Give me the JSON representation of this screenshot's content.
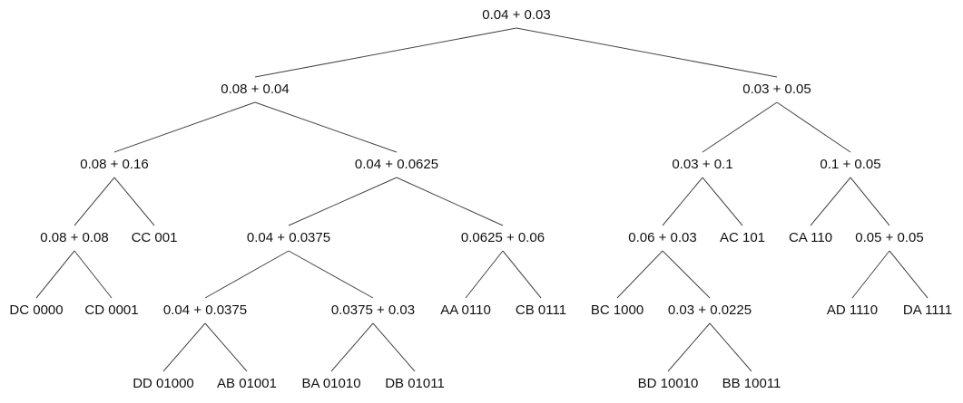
{
  "tree": {
    "label": "0.04 + 0.03",
    "children": [
      {
        "label": "0.08 + 0.04",
        "children": [
          {
            "label": "0.08 + 0.16",
            "children": [
              {
                "label": "0.08 + 0.08",
                "children": [
                  {
                    "label": "DC 0000"
                  },
                  {
                    "label": "CD 0001"
                  }
                ]
              },
              {
                "label": "CC 001"
              }
            ]
          },
          {
            "label": "0.04 + 0.0625",
            "children": [
              {
                "label": "0.04 + 0.0375",
                "children": [
                  {
                    "label": "0.04 + 0.0375",
                    "children": [
                      {
                        "label": "DD 01000"
                      },
                      {
                        "label": "AB 01001"
                      }
                    ]
                  },
                  {
                    "label": "0.0375 + 0.03",
                    "children": [
                      {
                        "label": "BA 01010"
                      },
                      {
                        "label": "DB 01011"
                      }
                    ]
                  }
                ]
              },
              {
                "label": "0.0625 + 0.06",
                "children": [
                  {
                    "label": "AA 0110"
                  },
                  {
                    "label": "CB 0111"
                  }
                ]
              }
            ]
          }
        ]
      },
      {
        "label": "0.03 + 0.05",
        "children": [
          {
            "label": "0.03 + 0.1",
            "children": [
              {
                "label": "0.06 + 0.03",
                "children": [
                  {
                    "label": "BC 1000"
                  },
                  {
                    "label": "0.03 + 0.0225",
                    "children": [
                      {
                        "label": "BD 10010"
                      },
                      {
                        "label": "BB 10011"
                      }
                    ]
                  }
                ]
              },
              {
                "label": "AC 101"
              }
            ]
          },
          {
            "label": "0.1 + 0.05",
            "children": [
              {
                "label": "CA 110"
              },
              {
                "label": "0.05 + 0.05",
                "children": [
                  {
                    "label": "AD 1110"
                  },
                  {
                    "label": "DA 1111"
                  }
                ]
              }
            ]
          }
        ]
      }
    ]
  }
}
